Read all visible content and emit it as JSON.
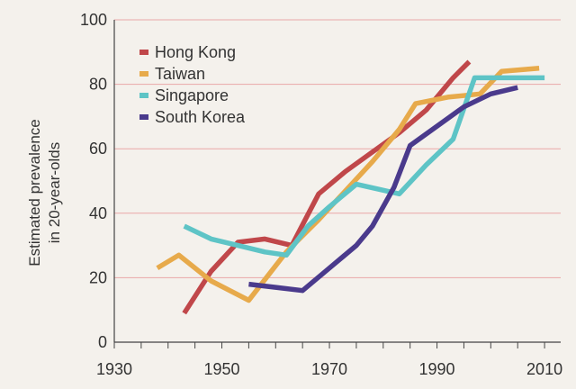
{
  "chart_data": {
    "type": "line",
    "title": "",
    "xlabel": "",
    "ylabel_lines": [
      "Estimated prevalence",
      "in 20-year-olds"
    ],
    "xlim": [
      1930,
      2013
    ],
    "ylim": [
      0,
      100
    ],
    "x_ticks": [
      1930,
      1950,
      1970,
      1990,
      2010
    ],
    "y_ticks": [
      0,
      20,
      40,
      60,
      80,
      100
    ],
    "grid": "horizontal",
    "grid_color": "#e9a7a7",
    "background": "#f4f1ec",
    "legend_position": "top-left",
    "series": [
      {
        "name": "Hong Kong",
        "color": "#c0474a",
        "points": [
          [
            1943,
            9
          ],
          [
            1948,
            22
          ],
          [
            1953,
            31
          ],
          [
            1958,
            32
          ],
          [
            1963,
            30
          ],
          [
            1968,
            46
          ],
          [
            1973,
            53
          ],
          [
            1978,
            59
          ],
          [
            1983,
            65
          ],
          [
            1988,
            72
          ],
          [
            1993,
            82
          ],
          [
            1996,
            87
          ]
        ]
      },
      {
        "name": "Taiwan",
        "color": "#e7aa4b",
        "points": [
          [
            1938,
            23
          ],
          [
            1942,
            27
          ],
          [
            1948,
            19
          ],
          [
            1955,
            13
          ],
          [
            1962,
            28
          ],
          [
            1968,
            38
          ],
          [
            1973,
            47
          ],
          [
            1978,
            56
          ],
          [
            1983,
            66
          ],
          [
            1986,
            74
          ],
          [
            1992,
            76
          ],
          [
            1998,
            77
          ],
          [
            2002,
            84
          ],
          [
            2009,
            85
          ]
        ]
      },
      {
        "name": "Singapore",
        "color": "#5ec4c6",
        "points": [
          [
            1943,
            36
          ],
          [
            1948,
            32
          ],
          [
            1953,
            30
          ],
          [
            1958,
            28
          ],
          [
            1962,
            27
          ],
          [
            1966,
            36
          ],
          [
            1970,
            42
          ],
          [
            1975,
            49
          ],
          [
            1983,
            46
          ],
          [
            1988,
            55
          ],
          [
            1993,
            63
          ],
          [
            1997,
            82
          ],
          [
            2002,
            82
          ],
          [
            2010,
            82
          ]
        ]
      },
      {
        "name": "South Korea",
        "color": "#4a3a8c",
        "points": [
          [
            1955,
            18
          ],
          [
            1960,
            17
          ],
          [
            1965,
            16
          ],
          [
            1970,
            23
          ],
          [
            1975,
            30
          ],
          [
            1978,
            36
          ],
          [
            1982,
            48
          ],
          [
            1985,
            61
          ],
          [
            1990,
            67
          ],
          [
            1995,
            73
          ],
          [
            2000,
            77
          ],
          [
            2005,
            79
          ]
        ]
      }
    ]
  }
}
